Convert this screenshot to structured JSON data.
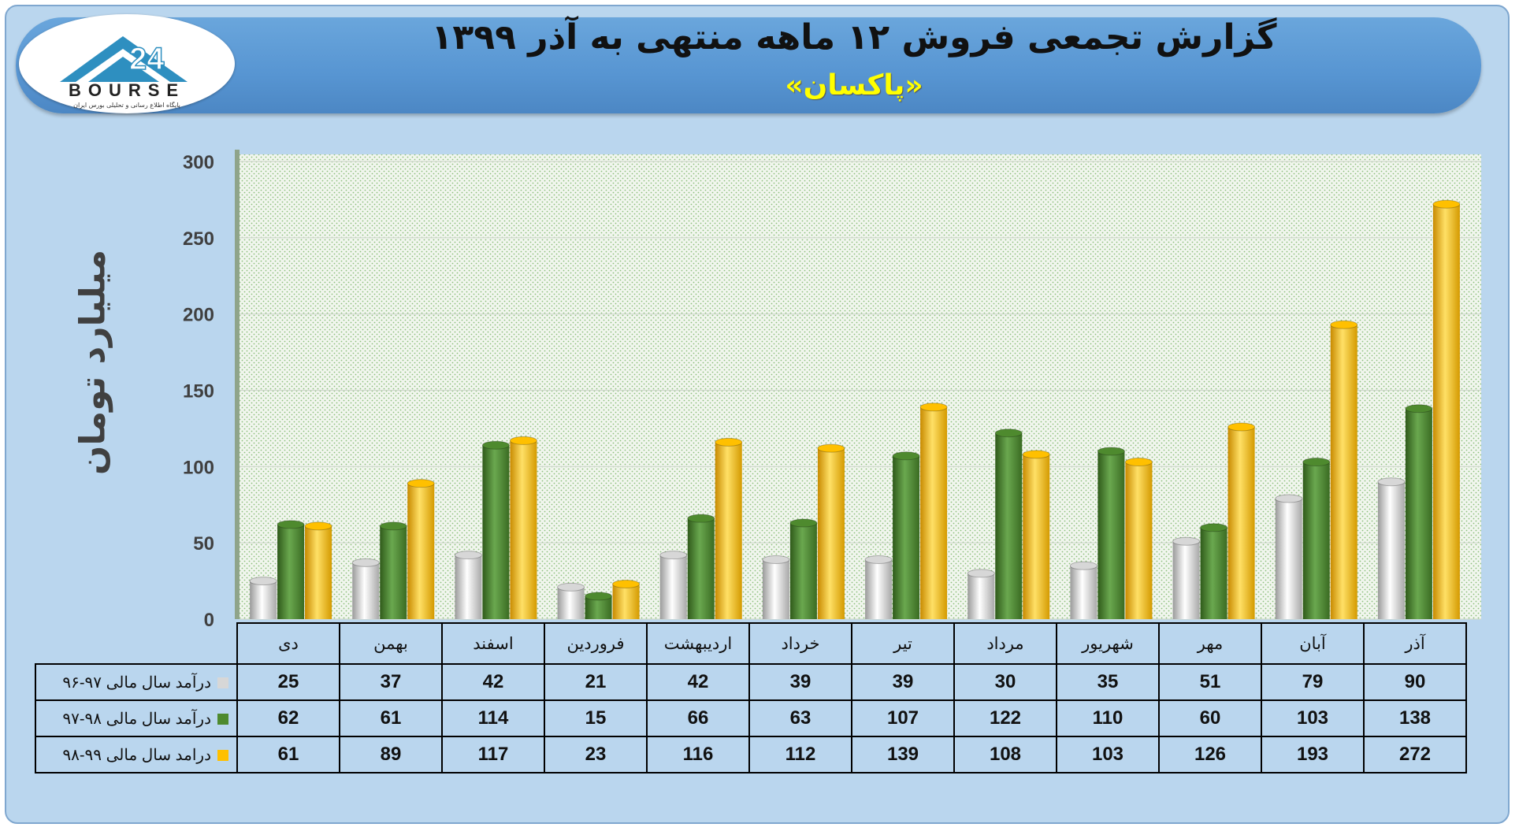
{
  "title": "گزارش تجمعی فروش ۱۲ ماهه منتهی به آذر ۱۳۹۹",
  "subtitle": "«پاکسان»",
  "logo": {
    "text": "BOURSE",
    "tagline": "پایگاه اطلاع رسانی و تحلیلی بورس ایران",
    "number_mark": "24"
  },
  "colors": {
    "series1": "#d7d7d7",
    "series2": "#4e8a2e",
    "series3": "#ffc000"
  },
  "chart_data": {
    "type": "bar",
    "ylabel": "میلیارد تومان",
    "ylim": [
      0,
      300
    ],
    "yticks": [
      0,
      50,
      100,
      150,
      200,
      250,
      300
    ],
    "categories": [
      "دی",
      "بهمن",
      "اسفند",
      "فروردین",
      "اردیبهشت",
      "خرداد",
      "تیر",
      "مرداد",
      "شهریور",
      "مهر",
      "آبان",
      "آذر"
    ],
    "series": [
      {
        "name": "درآمد سال مالی ۹۷-۹۶",
        "values": [
          25,
          37,
          42,
          21,
          42,
          39,
          39,
          30,
          35,
          51,
          79,
          90
        ]
      },
      {
        "name": "درآمد سال مالی ۹۸-۹۷",
        "values": [
          62,
          61,
          114,
          15,
          66,
          63,
          107,
          122,
          110,
          60,
          103,
          138
        ]
      },
      {
        "name": "درامد سال مالی ۹۹-۹۸",
        "values": [
          61,
          89,
          117,
          23,
          116,
          112,
          139,
          108,
          103,
          126,
          193,
          272
        ]
      }
    ],
    "grid": true,
    "legend": "table-below"
  }
}
